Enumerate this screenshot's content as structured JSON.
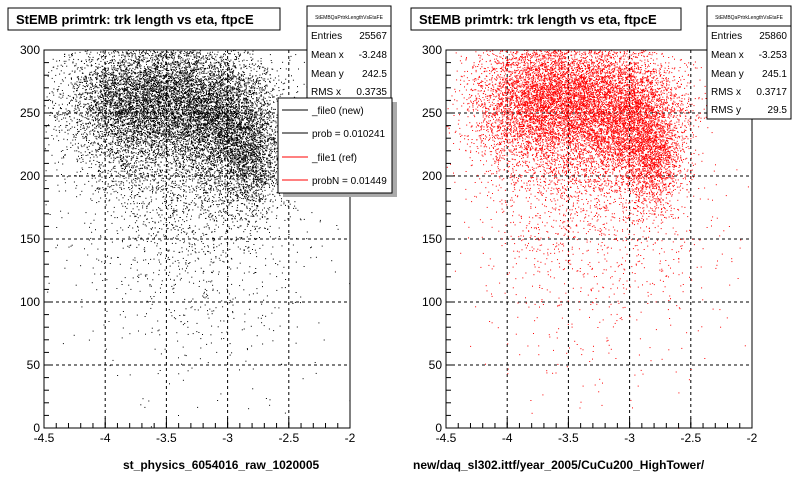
{
  "chart_data": [
    {
      "type": "scatter",
      "title": "StEMB primtrk: trk length vs eta, ftpcE",
      "xlabel": "st_physics_6054016_raw_1020005",
      "ylabel": "",
      "xlim": [
        -4.5,
        -2
      ],
      "ylim": [
        0,
        300
      ],
      "x_ticks": [
        "-4.5",
        "-4",
        "-3.5",
        "-3",
        "-2.5",
        "-2"
      ],
      "y_ticks": [
        "0",
        "50",
        "100",
        "150",
        "200",
        "250",
        "300"
      ],
      "grid": true,
      "marker_color": "#000000",
      "stats": {
        "name": "StEMBQaPrtrkLengthVsEtaFE",
        "rows": [
          {
            "label": "Entries",
            "value": "25567"
          },
          {
            "label": "Mean x",
            "value": "-3.248"
          },
          {
            "label": "Mean y",
            "value": "242.5"
          },
          {
            "label": "RMS x",
            "value": "0.3735"
          }
        ]
      },
      "legend": {
        "placement": "top-right",
        "entries": [
          {
            "text": "_file0 (new)",
            "color": "#000000"
          },
          {
            "text": "prob = 0.010241",
            "color": "#000000"
          },
          {
            "text": "_file1 (ref)",
            "color": "#ff0000"
          },
          {
            "text": "probN = 0.01449",
            "color": "#ff0000"
          }
        ]
      },
      "series": [
        {
          "values": [
            {
              "x": -3.5,
              "y": 262,
              "sx": 0.35,
              "sy": 26,
              "w": 5200
            },
            {
              "x": -3.0,
              "y": 240,
              "sx": 0.22,
              "sy": 26,
              "w": 3200
            },
            {
              "x": -2.8,
              "y": 210,
              "sx": 0.12,
              "sy": 22,
              "w": 1100
            },
            {
              "x": -3.85,
              "y": 255,
              "sx": 0.25,
              "sy": 28,
              "w": 2000
            },
            {
              "x": -3.4,
              "y": 200,
              "sx": 0.4,
              "sy": 45,
              "w": 1600
            },
            {
              "x": -3.2,
              "y": 130,
              "sx": 0.55,
              "sy": 55,
              "w": 550
            }
          ]
        }
      ]
    },
    {
      "type": "scatter",
      "title": "StEMB primtrk: trk length vs eta, ftpcE",
      "xlabel": "new/daq_sl302.ittf/year_2005/CuCu200_HighTower/",
      "ylabel": "",
      "xlim": [
        -4.5,
        -2
      ],
      "ylim": [
        0,
        300
      ],
      "x_ticks": [
        "-4.5",
        "-4",
        "-3.5",
        "-3",
        "-2.5",
        "-2"
      ],
      "y_ticks": [
        "0",
        "50",
        "100",
        "150",
        "200",
        "250",
        "300"
      ],
      "grid": true,
      "marker_color": "#ff0000",
      "stats": {
        "name": "StEMBQaPrtrkLengthVsEtaFE",
        "rows": [
          {
            "label": "Entries",
            "value": "25860"
          },
          {
            "label": "Mean x",
            "value": "-3.253"
          },
          {
            "label": "Mean y",
            "value": "245.1"
          },
          {
            "label": "RMS x",
            "value": "0.3717"
          },
          {
            "label": "RMS y",
            "value": "29.5"
          }
        ]
      },
      "series": [
        {
          "values": [
            {
              "x": -3.5,
              "y": 262,
              "sx": 0.33,
              "sy": 26,
              "w": 5200
            },
            {
              "x": -3.0,
              "y": 245,
              "sx": 0.22,
              "sy": 26,
              "w": 3400
            },
            {
              "x": -2.8,
              "y": 212,
              "sx": 0.12,
              "sy": 22,
              "w": 1200
            },
            {
              "x": -3.85,
              "y": 258,
              "sx": 0.25,
              "sy": 26,
              "w": 2000
            },
            {
              "x": -3.4,
              "y": 205,
              "sx": 0.4,
              "sy": 42,
              "w": 1500
            },
            {
              "x": -3.2,
              "y": 140,
              "sx": 0.55,
              "sy": 55,
              "w": 500
            }
          ]
        }
      ]
    }
  ]
}
